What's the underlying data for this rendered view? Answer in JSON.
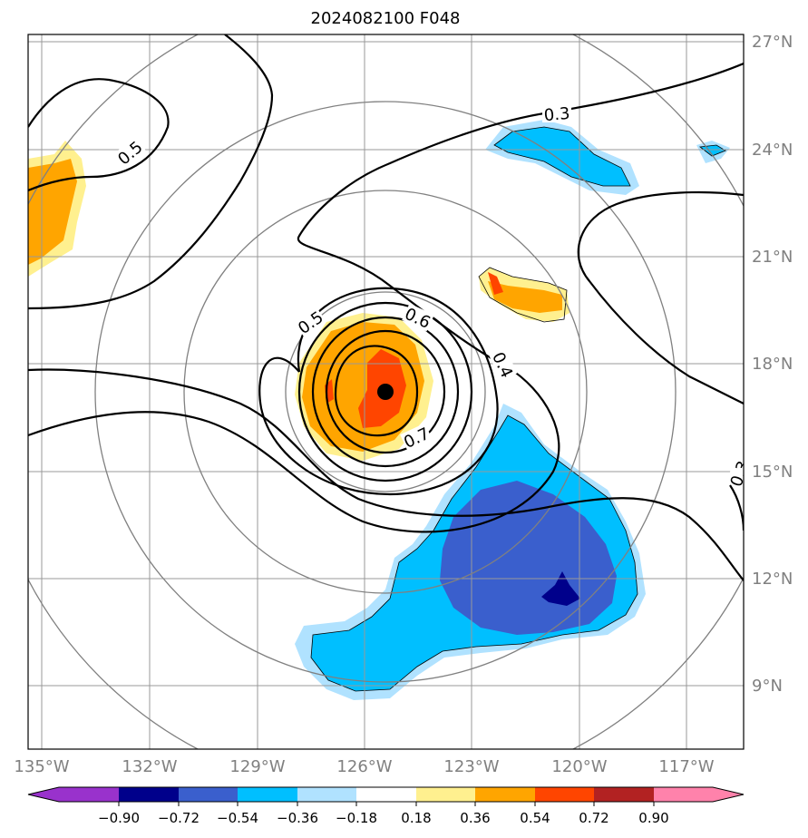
{
  "title": "2024082100 F048",
  "lat_labels": [
    "27°N",
    "24°N",
    "21°N",
    "18°N",
    "15°N",
    "12°N",
    "9°N"
  ],
  "lon_labels": [
    "135°W",
    "132°W",
    "129°W",
    "126°W",
    "123°W",
    "120°W",
    "117°W"
  ],
  "contour_labels": [
    "0.5",
    "0.3",
    "0.5",
    "0.6",
    "0.4",
    "0.7",
    "0.3"
  ],
  "colorbar": {
    "labels": [
      "−0.90",
      "−0.72",
      "−0.54",
      "−0.36",
      "−0.18",
      "0.18",
      "0.36",
      "0.54",
      "0.72",
      "0.90"
    ],
    "colors": [
      "#9932cc",
      "#00008b",
      "#3a5fcd",
      "#00bfff",
      "#b0e2ff",
      "#ffffff",
      "#fff08f",
      "#ffa500",
      "#ff4500",
      "#b22222",
      "#ff82ab",
      "#ff82ab"
    ]
  },
  "storm_center": {
    "lat": 17.4,
    "lon": -125.4
  }
}
